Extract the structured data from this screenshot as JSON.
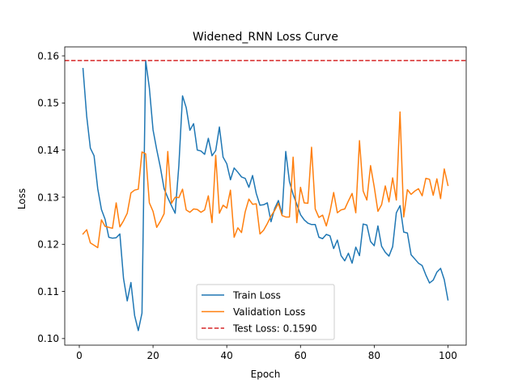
{
  "chart_data": {
    "type": "line",
    "title": "Widened_RNN Loss Curve",
    "xlabel": "Epoch",
    "ylabel": "Loss",
    "xlim": [
      -3.95,
      104.95
    ],
    "ylim": [
      0.0986,
      0.1619
    ],
    "xticks": [
      0,
      20,
      40,
      60,
      80,
      100
    ],
    "yticks": [
      0.1,
      0.11,
      0.12,
      0.13,
      0.14,
      0.15,
      0.16
    ],
    "ytick_labels": [
      "0.10",
      "0.11",
      "0.12",
      "0.13",
      "0.14",
      "0.15",
      "0.16"
    ],
    "grid": false,
    "legend_position": "lower-center",
    "series": [
      {
        "name": "Train Loss",
        "color": "#1f77b4",
        "style": "solid",
        "x": [
          1,
          2,
          3,
          4,
          5,
          6,
          7,
          8,
          9,
          10,
          11,
          12,
          13,
          14,
          15,
          16,
          17,
          18,
          19,
          20,
          21,
          22,
          23,
          24,
          25,
          26,
          27,
          28,
          29,
          30,
          31,
          32,
          33,
          34,
          35,
          36,
          37,
          38,
          39,
          40,
          41,
          42,
          43,
          44,
          45,
          46,
          47,
          48,
          49,
          50,
          51,
          52,
          53,
          54,
          55,
          56,
          57,
          58,
          59,
          60,
          61,
          62,
          63,
          64,
          65,
          66,
          67,
          68,
          69,
          70,
          71,
          72,
          73,
          74,
          75,
          76,
          77,
          78,
          79,
          80,
          81,
          82,
          83,
          84,
          85,
          86,
          87,
          88,
          89,
          90,
          91,
          92,
          93,
          94,
          95,
          96,
          97,
          98,
          99,
          100
        ],
        "values": [
          0.1573,
          0.1472,
          0.1404,
          0.1388,
          0.1318,
          0.1274,
          0.1253,
          0.1215,
          0.1213,
          0.1214,
          0.1222,
          0.1127,
          0.108,
          0.1119,
          0.1049,
          0.1017,
          0.1054,
          0.159,
          0.1532,
          0.1443,
          0.1401,
          0.1363,
          0.1318,
          0.1299,
          0.1282,
          0.1266,
          0.1367,
          0.1515,
          0.149,
          0.1442,
          0.1456,
          0.14,
          0.1398,
          0.1391,
          0.1425,
          0.1388,
          0.1399,
          0.1449,
          0.1385,
          0.1371,
          0.1337,
          0.1362,
          0.1353,
          0.1343,
          0.134,
          0.1321,
          0.1346,
          0.1308,
          0.1283,
          0.1284,
          0.1288,
          0.1248,
          0.1276,
          0.1293,
          0.1264,
          0.1397,
          0.1333,
          0.1306,
          0.1285,
          0.1263,
          0.1252,
          0.1245,
          0.1242,
          0.1242,
          0.1215,
          0.1212,
          0.1221,
          0.1218,
          0.1191,
          0.1209,
          0.1176,
          0.1165,
          0.1181,
          0.116,
          0.1194,
          0.1176,
          0.1243,
          0.1241,
          0.1206,
          0.1197,
          0.1239,
          0.1196,
          0.1183,
          0.1175,
          0.1195,
          0.1267,
          0.1282,
          0.1226,
          0.1224,
          0.1178,
          0.1169,
          0.116,
          0.1155,
          0.1135,
          0.1118,
          0.1124,
          0.1141,
          0.1149,
          0.1125,
          0.1082
        ]
      },
      {
        "name": "Validation Loss",
        "color": "#ff7f0e",
        "style": "solid",
        "x": [
          1,
          2,
          3,
          4,
          5,
          6,
          7,
          8,
          9,
          10,
          11,
          12,
          13,
          14,
          15,
          16,
          17,
          18,
          19,
          20,
          21,
          22,
          23,
          24,
          25,
          26,
          27,
          28,
          29,
          30,
          31,
          32,
          33,
          34,
          35,
          36,
          37,
          38,
          39,
          40,
          41,
          42,
          43,
          44,
          45,
          46,
          47,
          48,
          49,
          50,
          51,
          52,
          53,
          54,
          55,
          56,
          57,
          58,
          59,
          60,
          61,
          62,
          63,
          64,
          65,
          66,
          67,
          68,
          69,
          70,
          71,
          72,
          73,
          74,
          75,
          76,
          77,
          78,
          79,
          80,
          81,
          82,
          83,
          84,
          85,
          86,
          87,
          88,
          89,
          90,
          91,
          92,
          93,
          94,
          95,
          96,
          97,
          98,
          99,
          100
        ],
        "values": [
          0.1222,
          0.1231,
          0.1203,
          0.1198,
          0.1193,
          0.1252,
          0.1238,
          0.1236,
          0.1234,
          0.1288,
          0.1237,
          0.125,
          0.1266,
          0.1309,
          0.1315,
          0.1317,
          0.1396,
          0.1392,
          0.1288,
          0.127,
          0.1236,
          0.1249,
          0.1265,
          0.1397,
          0.1287,
          0.13,
          0.1299,
          0.1317,
          0.1273,
          0.1268,
          0.1275,
          0.1274,
          0.1268,
          0.1273,
          0.1303,
          0.1246,
          0.1389,
          0.1266,
          0.1283,
          0.1277,
          0.1315,
          0.1215,
          0.1235,
          0.1225,
          0.1269,
          0.1296,
          0.1285,
          0.1286,
          0.1222,
          0.123,
          0.1244,
          0.126,
          0.1272,
          0.1287,
          0.1261,
          0.1258,
          0.1258,
          0.1385,
          0.1246,
          0.1321,
          0.1288,
          0.1287,
          0.1406,
          0.1275,
          0.1257,
          0.1262,
          0.1239,
          0.1269,
          0.131,
          0.1267,
          0.1273,
          0.1275,
          0.1292,
          0.1308,
          0.1267,
          0.142,
          0.1313,
          0.1294,
          0.1367,
          0.1322,
          0.127,
          0.1284,
          0.1324,
          0.129,
          0.1341,
          0.1294,
          0.1481,
          0.1258,
          0.1316,
          0.1306,
          0.1313,
          0.1318,
          0.1303,
          0.134,
          0.1338,
          0.1304,
          0.1339,
          0.1297,
          0.136,
          0.1325
        ]
      }
    ],
    "reference_lines": [
      {
        "name": "Test Loss: 0.1590",
        "value": 0.159,
        "color": "#d62728",
        "style": "dashed",
        "orientation": "horizontal"
      }
    ]
  }
}
